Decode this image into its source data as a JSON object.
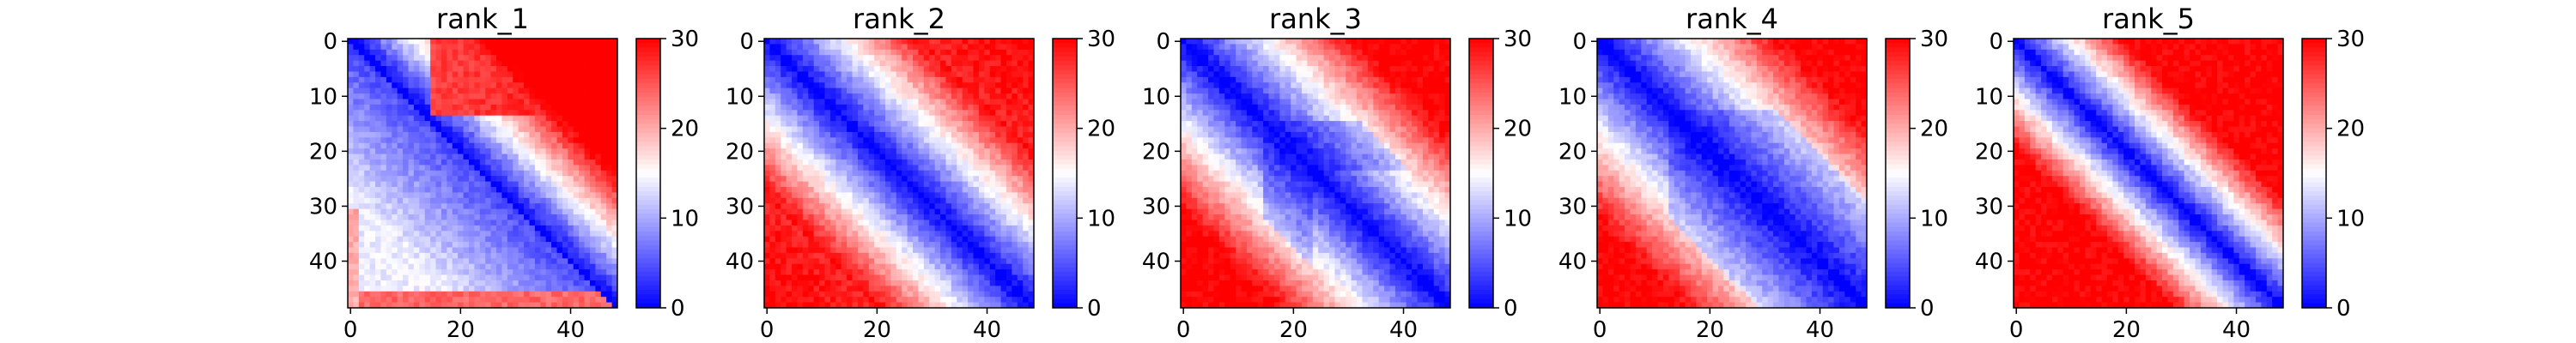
{
  "chart_data": [
    {
      "type": "heatmap",
      "title": "rank_1",
      "xlabel": "",
      "ylabel": "",
      "matrix_size": 49,
      "x_ticks": [
        0,
        20,
        40
      ],
      "y_ticks": [
        0,
        10,
        20,
        30,
        40
      ],
      "colorbar": {
        "min": 0,
        "max": 30,
        "ticks": [
          0,
          10,
          20,
          30
        ]
      },
      "colormap": {
        "low": "#0000ff",
        "mid": "#ffffff",
        "high": "#ff0000"
      },
      "values_description": "pairwise distance-like matrix; 0 on the diagonal, increasing away from it; top-right block ~28-30, lower-left mostly ~8-14 with red strip at bottom rows"
    },
    {
      "type": "heatmap",
      "title": "rank_2",
      "xlabel": "",
      "ylabel": "",
      "matrix_size": 49,
      "x_ticks": [
        0,
        20,
        40
      ],
      "y_ticks": [
        0,
        10,
        20,
        30,
        40
      ],
      "colorbar": {
        "min": 0,
        "max": 30,
        "ticks": [
          0,
          10,
          20,
          30
        ]
      },
      "colormap": {
        "low": "#0000ff",
        "mid": "#ffffff",
        "high": "#ff0000"
      },
      "values_description": "diagonal 0, symmetric; far corners ~28-30, band around diagonal blue"
    },
    {
      "type": "heatmap",
      "title": "rank_3",
      "xlabel": "",
      "ylabel": "",
      "matrix_size": 49,
      "x_ticks": [
        0,
        20,
        40
      ],
      "y_ticks": [
        0,
        10,
        20,
        30,
        40
      ],
      "colorbar": {
        "min": 0,
        "max": 30,
        "ticks": [
          0,
          10,
          20,
          30
        ]
      },
      "colormap": {
        "low": "#0000ff",
        "mid": "#ffffff",
        "high": "#ff0000"
      },
      "values_description": "diagonal 0, symmetric; far corners ~28-30, wide blue band"
    },
    {
      "type": "heatmap",
      "title": "rank_4",
      "xlabel": "",
      "ylabel": "",
      "matrix_size": 49,
      "x_ticks": [
        0,
        20,
        40
      ],
      "y_ticks": [
        0,
        10,
        20,
        30,
        40
      ],
      "colorbar": {
        "min": 0,
        "max": 30,
        "ticks": [
          0,
          10,
          20,
          30
        ]
      },
      "colormap": {
        "low": "#0000ff",
        "mid": "#ffffff",
        "high": "#ff0000"
      },
      "values_description": "diagonal 0, symmetric; far corners ~28-30, wide blue band"
    },
    {
      "type": "heatmap",
      "title": "rank_5",
      "xlabel": "",
      "ylabel": "",
      "matrix_size": 49,
      "x_ticks": [
        0,
        20,
        40
      ],
      "y_ticks": [
        0,
        10,
        20,
        30,
        40
      ],
      "colorbar": {
        "min": 0,
        "max": 30,
        "ticks": [
          0,
          10,
          20,
          30
        ]
      },
      "colormap": {
        "low": "#0000ff",
        "mid": "#ffffff",
        "high": "#ff0000"
      },
      "values_description": "diagonal 0, symmetric; narrow blue band, corners ~28-30"
    }
  ]
}
